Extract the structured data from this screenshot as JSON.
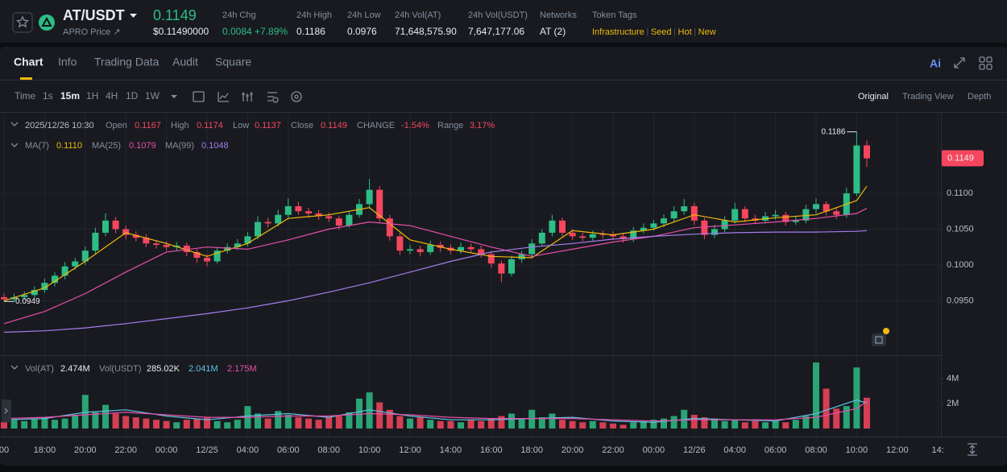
{
  "header": {
    "pair": "AT/USDT",
    "price": "0.1149",
    "price_link": "APRO Price ↗",
    "usd_price": "$0.11490000",
    "stats": [
      {
        "label": "24h Chg",
        "value": "0.0084 +7.89%"
      },
      {
        "label": "24h High",
        "value": "0.1186"
      },
      {
        "label": "24h Low",
        "value": "0.0976"
      },
      {
        "label": "24h Vol(AT)",
        "value": "71,648,575.90"
      },
      {
        "label": "24h Vol(USDT)",
        "value": "7,647,177.06"
      },
      {
        "label": "Networks",
        "value": "AT (2)"
      }
    ],
    "token_tags": {
      "label": "Token Tags",
      "tags": [
        "Infrastructure",
        "Seed",
        "Hot",
        "New"
      ]
    }
  },
  "tabs": [
    "Chart",
    "Info",
    "Trading Data",
    "Audit",
    "Square"
  ],
  "intervals": [
    "Time",
    "1s",
    "15m",
    "1H",
    "4H",
    "1D",
    "1W"
  ],
  "views": [
    "Original",
    "Trading View",
    "Depth"
  ],
  "legend": {
    "time": "2025/12/26 10:30",
    "items": [
      {
        "label": "Open",
        "value": "0.1167"
      },
      {
        "label": "High",
        "value": "0.1174"
      },
      {
        "label": "Low",
        "value": "0.1137"
      },
      {
        "label": "Close",
        "value": "0.1149"
      },
      {
        "label": "CHANGE",
        "value": "-1.54%"
      },
      {
        "label": "Range",
        "value": "3.17%"
      }
    ]
  },
  "volume_legend": {
    "label": "Vol(AT)",
    "value": "2.474M",
    "label2": "Vol(USDT)",
    "value2": "285.02K"
  },
  "chart_data": {
    "type": "candlestick",
    "up_color": "#2ebd85",
    "down_color": "#f6465d",
    "open": [
      0.0955,
      0.0952,
      0.0955,
      0.0958,
      0.0965,
      0.0975,
      0.0985,
      0.0998,
      0.1005,
      0.102,
      0.1045,
      0.1062,
      0.105,
      0.1042,
      0.1038,
      0.103,
      0.1028,
      0.1025,
      0.1027,
      0.1018,
      0.101,
      0.1005,
      0.102,
      0.1025,
      0.103,
      0.104,
      0.106,
      0.1058,
      0.107,
      0.1082,
      0.1075,
      0.1072,
      0.1068,
      0.1065,
      0.1055,
      0.107,
      0.1085,
      0.1105,
      0.1065,
      0.104,
      0.102,
      0.1022,
      0.1018,
      0.1028,
      0.1024,
      0.102,
      0.1025,
      0.1022,
      0.1015,
      0.1002,
      0.0988,
      0.1008,
      0.1015,
      0.103,
      0.1045,
      0.1062,
      0.1045,
      0.104,
      0.1038,
      0.1043,
      0.1042,
      0.104,
      0.1036,
      0.1048,
      0.1052,
      0.1058,
      0.1065,
      0.1075,
      0.1082,
      0.1062,
      0.1042,
      0.105,
      0.1062,
      0.1078,
      0.1065,
      0.1062,
      0.1068,
      0.107,
      0.106,
      0.1062,
      0.1078,
      0.1085,
      0.1075,
      0.107,
      0.11,
      0.1167
    ],
    "high": [
      0.096,
      0.096,
      0.0963,
      0.097,
      0.0981,
      0.099,
      0.1004,
      0.101,
      0.1026,
      0.1052,
      0.1072,
      0.1067,
      0.1055,
      0.1047,
      0.1043,
      0.1035,
      0.1033,
      0.1032,
      0.1031,
      0.1022,
      0.1015,
      0.1025,
      0.103,
      0.1036,
      0.1046,
      0.1068,
      0.1066,
      0.1077,
      0.1093,
      0.1088,
      0.108,
      0.1077,
      0.1073,
      0.1069,
      0.1075,
      0.1092,
      0.112,
      0.111,
      0.107,
      0.1045,
      0.1028,
      0.1027,
      0.1034,
      0.1033,
      0.1029,
      0.1031,
      0.103,
      0.1027,
      0.1019,
      0.1006,
      0.1013,
      0.102,
      0.1036,
      0.105,
      0.107,
      0.1066,
      0.105,
      0.1045,
      0.1048,
      0.1048,
      0.1047,
      0.1045,
      0.1053,
      0.1058,
      0.1063,
      0.1071,
      0.1082,
      0.1092,
      0.1087,
      0.1066,
      0.1056,
      0.1068,
      0.1087,
      0.1082,
      0.107,
      0.1074,
      0.1077,
      0.1074,
      0.1068,
      0.1084,
      0.1093,
      0.1089,
      0.108,
      0.1108,
      0.1186,
      0.1174
    ],
    "low": [
      0.0949,
      0.0948,
      0.0951,
      0.0954,
      0.0961,
      0.097,
      0.098,
      0.0993,
      0.1,
      0.1015,
      0.104,
      0.1044,
      0.1036,
      0.1033,
      0.1025,
      0.1023,
      0.102,
      0.102,
      0.1012,
      0.1003,
      0.0998,
      0.1002,
      0.1016,
      0.1021,
      0.1026,
      0.1036,
      0.1052,
      0.1054,
      0.1066,
      0.107,
      0.1066,
      0.1063,
      0.106,
      0.1049,
      0.1052,
      0.1066,
      0.108,
      0.106,
      0.1034,
      0.1014,
      0.1015,
      0.1012,
      0.1014,
      0.1018,
      0.1015,
      0.1016,
      0.1017,
      0.101,
      0.0996,
      0.0976,
      0.0984,
      0.1003,
      0.1011,
      0.1026,
      0.104,
      0.104,
      0.1035,
      0.1033,
      0.1034,
      0.1037,
      0.1035,
      0.1031,
      0.1032,
      0.1044,
      0.1048,
      0.1053,
      0.106,
      0.107,
      0.1056,
      0.1036,
      0.1038,
      0.1046,
      0.1058,
      0.106,
      0.1057,
      0.1058,
      0.1063,
      0.1055,
      0.1056,
      0.1058,
      0.1072,
      0.1069,
      0.1064,
      0.1066,
      0.1096,
      0.1137
    ],
    "close": [
      0.0952,
      0.0955,
      0.0958,
      0.0965,
      0.0975,
      0.0985,
      0.0998,
      0.1005,
      0.102,
      0.1045,
      0.1062,
      0.105,
      0.1042,
      0.1038,
      0.103,
      0.1028,
      0.1025,
      0.1027,
      0.1018,
      0.101,
      0.1005,
      0.102,
      0.1025,
      0.103,
      0.104,
      0.106,
      0.1058,
      0.107,
      0.1082,
      0.1075,
      0.1072,
      0.1068,
      0.1065,
      0.1055,
      0.107,
      0.1085,
      0.1105,
      0.1065,
      0.104,
      0.102,
      0.1022,
      0.1018,
      0.1028,
      0.1024,
      0.102,
      0.1025,
      0.1022,
      0.1015,
      0.1002,
      0.0988,
      0.1008,
      0.1015,
      0.103,
      0.1045,
      0.1062,
      0.1045,
      0.104,
      0.1038,
      0.1043,
      0.1042,
      0.104,
      0.1036,
      0.1048,
      0.1052,
      0.1058,
      0.1065,
      0.1075,
      0.1082,
      0.1062,
      0.1042,
      0.105,
      0.1062,
      0.1078,
      0.1065,
      0.1062,
      0.1068,
      0.107,
      0.106,
      0.1062,
      0.1078,
      0.1085,
      0.1075,
      0.107,
      0.11,
      0.1167,
      0.1149
    ],
    "ylim": [
      0.0875,
      0.1207
    ],
    "yticks": [
      {
        "value": 0.095,
        "label": "0.0950"
      },
      {
        "value": 0.1,
        "label": "0.1000"
      },
      {
        "value": 0.105,
        "label": "0.1050"
      },
      {
        "value": 0.11,
        "label": "0.1100"
      }
    ],
    "xlim": [
      -0.5,
      98.5
    ],
    "xticks": [
      {
        "value": 0,
        "label": "00"
      },
      {
        "value": 4,
        "label": "18:00"
      },
      {
        "value": 8,
        "label": "20:00"
      },
      {
        "value": 12,
        "label": "22:00"
      },
      {
        "value": 16,
        "label": "00:00"
      },
      {
        "value": 20,
        "label": "12/25"
      },
      {
        "value": 24,
        "label": "04:00"
      },
      {
        "value": 28,
        "label": "06:00"
      },
      {
        "value": 32,
        "label": "08:00"
      },
      {
        "value": 36,
        "label": "10:00"
      },
      {
        "value": 40,
        "label": "12:00"
      },
      {
        "value": 44,
        "label": "14:00"
      },
      {
        "value": 48,
        "label": "16:00"
      },
      {
        "value": 52,
        "label": "18:00"
      },
      {
        "value": 56,
        "label": "20:00"
      },
      {
        "value": 60,
        "label": "22:00"
      },
      {
        "value": 64,
        "label": "00:00"
      },
      {
        "value": 68,
        "label": "12/26"
      },
      {
        "value": 72,
        "label": "04:00"
      },
      {
        "value": 76,
        "label": "06:00"
      },
      {
        "value": 80,
        "label": "08:00"
      },
      {
        "value": 84,
        "label": "10:00"
      },
      {
        "value": 88,
        "label": "12:00"
      },
      {
        "value": 92,
        "label": "14:"
      }
    ],
    "last_price": {
      "value": 0.1149,
      "label": "0.1149"
    },
    "annotations": [
      {
        "x": 84,
        "value": 0.1186,
        "label": "0.1186"
      },
      {
        "x": 0,
        "value": 0.0949,
        "label": "0.0949"
      }
    ],
    "series": [
      {
        "name": "MA(7)",
        "latest": "0.1110",
        "color": "#f0b90b",
        "x": [
          0,
          4,
          8,
          12,
          16,
          20,
          24,
          28,
          32,
          36,
          40,
          44,
          48,
          52,
          56,
          60,
          64,
          68,
          72,
          76,
          80,
          84,
          85
        ],
        "values": [
          0.095,
          0.0968,
          0.1005,
          0.1045,
          0.103,
          0.1012,
          0.103,
          0.1065,
          0.107,
          0.108,
          0.1035,
          0.1022,
          0.1012,
          0.101,
          0.1048,
          0.1042,
          0.105,
          0.107,
          0.106,
          0.1066,
          0.107,
          0.109,
          0.111
        ]
      },
      {
        "name": "MA(25)",
        "latest": "0.1079",
        "color": "#e84fa8",
        "x": [
          0,
          4,
          8,
          12,
          16,
          20,
          24,
          28,
          32,
          36,
          40,
          44,
          48,
          52,
          56,
          60,
          64,
          68,
          72,
          76,
          80,
          84,
          85
        ],
        "values": [
          0.0918,
          0.0935,
          0.096,
          0.099,
          0.1018,
          0.1025,
          0.1022,
          0.1035,
          0.105,
          0.106,
          0.1055,
          0.104,
          0.1025,
          0.1012,
          0.1022,
          0.1032,
          0.104,
          0.1052,
          0.1056,
          0.106,
          0.1065,
          0.1072,
          0.1079
        ]
      },
      {
        "name": "MA(99)",
        "latest": "0.1048",
        "color": "#a77cf0",
        "x": [
          0,
          4,
          8,
          12,
          16,
          20,
          24,
          28,
          32,
          36,
          40,
          44,
          48,
          52,
          56,
          60,
          64,
          68,
          72,
          76,
          80,
          84,
          85
        ],
        "values": [
          0.0906,
          0.0908,
          0.0912,
          0.0918,
          0.0925,
          0.0932,
          0.094,
          0.095,
          0.0962,
          0.0975,
          0.099,
          0.1005,
          0.1018,
          0.1025,
          0.103,
          0.1036,
          0.104,
          0.1043,
          0.1045,
          0.1046,
          0.1046,
          0.1047,
          0.1048
        ]
      }
    ],
    "volume": {
      "values": [
        0.5,
        0.7,
        0.6,
        0.8,
        0.9,
        0.7,
        0.8,
        1.1,
        2.7,
        1.3,
        1.9,
        1.2,
        1.0,
        0.9,
        0.8,
        0.7,
        0.6,
        0.5,
        0.7,
        0.8,
        0.9,
        0.6,
        0.5,
        0.7,
        1.8,
        1.2,
        0.8,
        1.4,
        1.1,
        0.9,
        0.8,
        0.7,
        0.9,
        1.0,
        1.3,
        2.4,
        2.9,
        2.1,
        1.5,
        1.0,
        0.8,
        0.9,
        0.7,
        0.6,
        0.6,
        0.5,
        0.7,
        0.6,
        0.8,
        1.0,
        1.2,
        0.8,
        1.5,
        0.9,
        1.2,
        0.7,
        0.6,
        0.5,
        0.6,
        0.5,
        0.4,
        0.3,
        0.5,
        0.6,
        0.7,
        0.8,
        1.0,
        1.5,
        1.1,
        0.9,
        0.8,
        0.6,
        0.7,
        0.5,
        0.6,
        0.5,
        0.6,
        0.5,
        0.7,
        1.0,
        5.3,
        3.2,
        1.6,
        1.8,
        4.9,
        2.474
      ],
      "ylim": [
        0,
        5.5
      ],
      "yticks": [
        {
          "value": 2,
          "label": "2M"
        },
        {
          "value": 4,
          "label": "4M"
        }
      ],
      "series": [
        {
          "latest": "2.041M",
          "color": "#5fc3e4",
          "x": [
            0,
            4,
            8,
            12,
            16,
            20,
            24,
            28,
            32,
            36,
            40,
            44,
            48,
            52,
            56,
            60,
            64,
            68,
            72,
            76,
            80,
            84,
            85
          ],
          "values": [
            0.7,
            0.8,
            1.3,
            1.5,
            1.0,
            0.7,
            1.0,
            1.2,
            0.9,
            1.5,
            1.0,
            0.7,
            0.7,
            0.8,
            0.9,
            0.6,
            0.5,
            0.8,
            0.7,
            0.6,
            1.2,
            2.3,
            2.041
          ]
        },
        {
          "latest": "2.175M",
          "color": "#e84fa8",
          "x": [
            0,
            4,
            8,
            12,
            16,
            20,
            24,
            28,
            32,
            36,
            40,
            44,
            48,
            52,
            56,
            60,
            64,
            68,
            72,
            76,
            80,
            84,
            85
          ],
          "values": [
            0.8,
            0.9,
            1.1,
            1.3,
            1.1,
            0.9,
            0.9,
            1.0,
            1.0,
            1.2,
            1.1,
            0.9,
            0.8,
            0.8,
            0.8,
            0.7,
            0.6,
            0.7,
            0.7,
            0.7,
            0.9,
            1.6,
            2.175
          ]
        }
      ]
    }
  }
}
